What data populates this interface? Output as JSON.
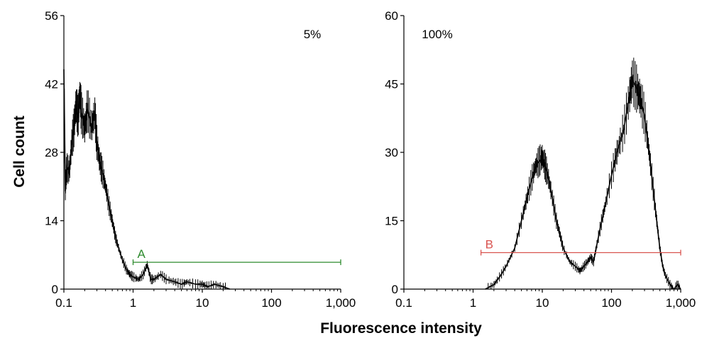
{
  "chart_data": [
    {
      "type": "histogram",
      "panel_label": "5%",
      "ylabel": "Cell count",
      "xlabel": "Fluorescence intensity",
      "x_scale": "log",
      "xlim": [
        0.1,
        1000
      ],
      "ylim": [
        0,
        56
      ],
      "x_ticks": [
        0.1,
        1,
        10,
        100,
        1000
      ],
      "x_tick_labels": [
        "0.1",
        "1",
        "10",
        "100",
        "1,000"
      ],
      "y_ticks": [
        0,
        14,
        28,
        42,
        56
      ],
      "y_tick_labels": [
        "0",
        "14",
        "28",
        "42",
        "56"
      ],
      "gate": {
        "label": "A",
        "color": "#2e8b2e",
        "x_start": 1.0,
        "x_end": 1000,
        "y": 5.5
      },
      "curve": [
        [
          0.1,
          45
        ],
        [
          0.105,
          20
        ],
        [
          0.11,
          25
        ],
        [
          0.12,
          24
        ],
        [
          0.13,
          30
        ],
        [
          0.14,
          33
        ],
        [
          0.15,
          38
        ],
        [
          0.16,
          35
        ],
        [
          0.17,
          40
        ],
        [
          0.18,
          36
        ],
        [
          0.2,
          33
        ],
        [
          0.22,
          37
        ],
        [
          0.25,
          33
        ],
        [
          0.28,
          36
        ],
        [
          0.3,
          30
        ],
        [
          0.33,
          26
        ],
        [
          0.36,
          24
        ],
        [
          0.4,
          21
        ],
        [
          0.45,
          17
        ],
        [
          0.5,
          14
        ],
        [
          0.55,
          11
        ],
        [
          0.6,
          9
        ],
        [
          0.7,
          6
        ],
        [
          0.8,
          4
        ],
        [
          0.9,
          3
        ],
        [
          1.0,
          2.5
        ],
        [
          1.2,
          2
        ],
        [
          1.4,
          3
        ],
        [
          1.6,
          5
        ],
        [
          1.8,
          2
        ],
        [
          2,
          2
        ],
        [
          2.5,
          3
        ],
        [
          3,
          2
        ],
        [
          4,
          1.5
        ],
        [
          5,
          1
        ],
        [
          6,
          1.5
        ],
        [
          8,
          1
        ],
        [
          10,
          1
        ],
        [
          12,
          0.5
        ],
        [
          15,
          1
        ],
        [
          20,
          0.5
        ],
        [
          25,
          0
        ]
      ],
      "curve_color": "#000000"
    },
    {
      "type": "histogram",
      "panel_label": "100%",
      "x_scale": "log",
      "xlim": [
        0.1,
        1000
      ],
      "ylim": [
        0,
        60
      ],
      "x_ticks": [
        0.1,
        1,
        10,
        100,
        1000
      ],
      "x_tick_labels": [
        "0.1",
        "1",
        "10",
        "100",
        "1,000"
      ],
      "y_ticks": [
        0,
        15,
        30,
        45,
        60
      ],
      "y_tick_labels": [
        "0",
        "15",
        "30",
        "45",
        "60"
      ],
      "gate": {
        "label": "B",
        "color": "#d9534f",
        "x_start": 1.3,
        "x_end": 1000,
        "y": 8
      },
      "curve": [
        [
          1.5,
          0
        ],
        [
          2,
          1
        ],
        [
          2.5,
          3
        ],
        [
          3,
          5
        ],
        [
          4,
          9
        ],
        [
          5,
          15
        ],
        [
          6,
          20
        ],
        [
          7,
          24
        ],
        [
          8,
          27
        ],
        [
          9,
          28
        ],
        [
          10,
          29
        ],
        [
          11,
          27
        ],
        [
          12,
          25
        ],
        [
          14,
          20
        ],
        [
          16,
          15
        ],
        [
          18,
          12
        ],
        [
          20,
          9
        ],
        [
          25,
          6
        ],
        [
          30,
          5
        ],
        [
          35,
          4
        ],
        [
          40,
          5
        ],
        [
          45,
          6
        ],
        [
          50,
          7
        ],
        [
          55,
          6
        ],
        [
          60,
          9
        ],
        [
          70,
          14
        ],
        [
          80,
          18
        ],
        [
          100,
          25
        ],
        [
          120,
          30
        ],
        [
          150,
          35
        ],
        [
          180,
          42
        ],
        [
          200,
          46
        ],
        [
          230,
          44
        ],
        [
          260,
          42
        ],
        [
          300,
          38
        ],
        [
          350,
          30
        ],
        [
          400,
          22
        ],
        [
          450,
          15
        ],
        [
          500,
          9
        ],
        [
          550,
          5
        ],
        [
          600,
          3
        ],
        [
          700,
          1
        ],
        [
          800,
          0
        ],
        [
          900,
          1
        ],
        [
          1000,
          0
        ]
      ],
      "curve_color": "#000000"
    }
  ]
}
